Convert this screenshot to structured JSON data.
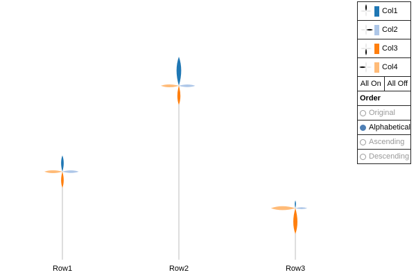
{
  "chart_data": {
    "type": "flower",
    "categories": [
      "Row1",
      "Row2",
      "Row3"
    ],
    "stem_height": [
      0.41,
      0.81,
      0.24
    ],
    "series": [
      {
        "name": "Col1",
        "color": "#1f77b4",
        "direction": "up",
        "values": [
          0.56,
          1.0,
          0.27
        ]
      },
      {
        "name": "Col2",
        "color": "#aec7e8",
        "direction": "right",
        "values": [
          0.56,
          0.56,
          0.41
        ]
      },
      {
        "name": "Col3",
        "color": "#ff7f0e",
        "direction": "down",
        "values": [
          0.56,
          0.66,
          0.89
        ]
      },
      {
        "name": "Col4",
        "color": "#ffbb78",
        "direction": "left",
        "values": [
          0.62,
          0.62,
          0.84
        ]
      }
    ],
    "legend_placement": "top-right"
  },
  "controls": {
    "all_on": "All On",
    "all_off": "All Off",
    "order_title": "Order",
    "order_options": [
      "Original",
      "Alphabetical",
      "Ascending",
      "Descending"
    ],
    "selected_order": "Alphabetical"
  }
}
